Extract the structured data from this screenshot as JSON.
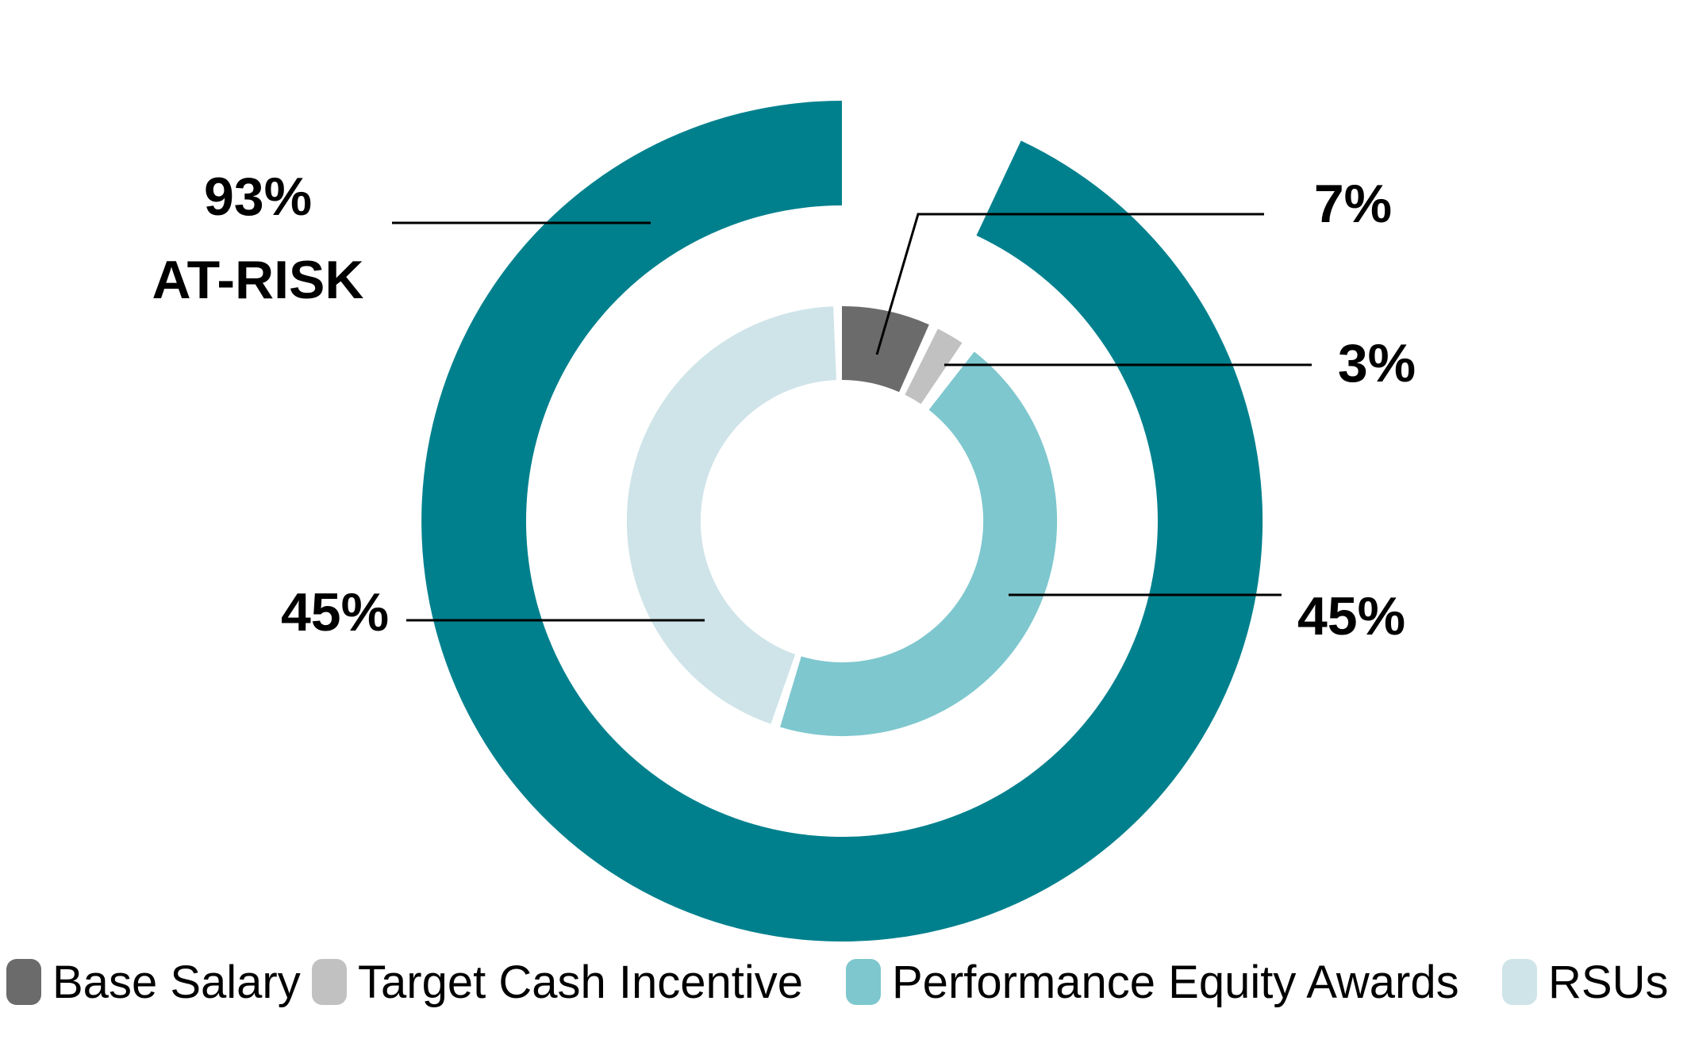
{
  "chart_data": {
    "type": "donut",
    "title": "",
    "categories": [
      "Base Salary",
      "Target Cash Incentive",
      "Performance Equity Awards",
      "RSUs"
    ],
    "values": [
      7,
      3,
      45,
      45
    ],
    "series": [
      {
        "name": "Base Salary",
        "value_pct": 7,
        "color": "#6B6B6B",
        "callout": "7%"
      },
      {
        "name": "Target Cash Incentive",
        "value_pct": 3,
        "color": "#C1C1C1",
        "callout": "3%"
      },
      {
        "name": "Performance Equity Awards",
        "value_pct": 45,
        "color": "#7EC7CE",
        "callout": "45%"
      },
      {
        "name": "RSUs",
        "value_pct": 45,
        "color": "#CFE4E9",
        "callout": "45%"
      }
    ],
    "outer_ring": {
      "name": "AT-RISK",
      "value_pct": 93,
      "color": "#00808D",
      "callout": "93%",
      "gap_represents": "Base Salary"
    },
    "start_angle_deg": 0,
    "direction": "clockwise",
    "legend_position": "bottom",
    "grid": false
  },
  "labels": {
    "at_risk_pct": "93%",
    "at_risk_caption": "AT-RISK",
    "base_salary_pct": "7%",
    "target_cash_pct": "3%",
    "performance_equity_pct": "45%",
    "rsus_pct": "45%"
  },
  "colors": {
    "background": "#FFFFFF",
    "callout_line": "#000000",
    "label_text": "#000000"
  }
}
